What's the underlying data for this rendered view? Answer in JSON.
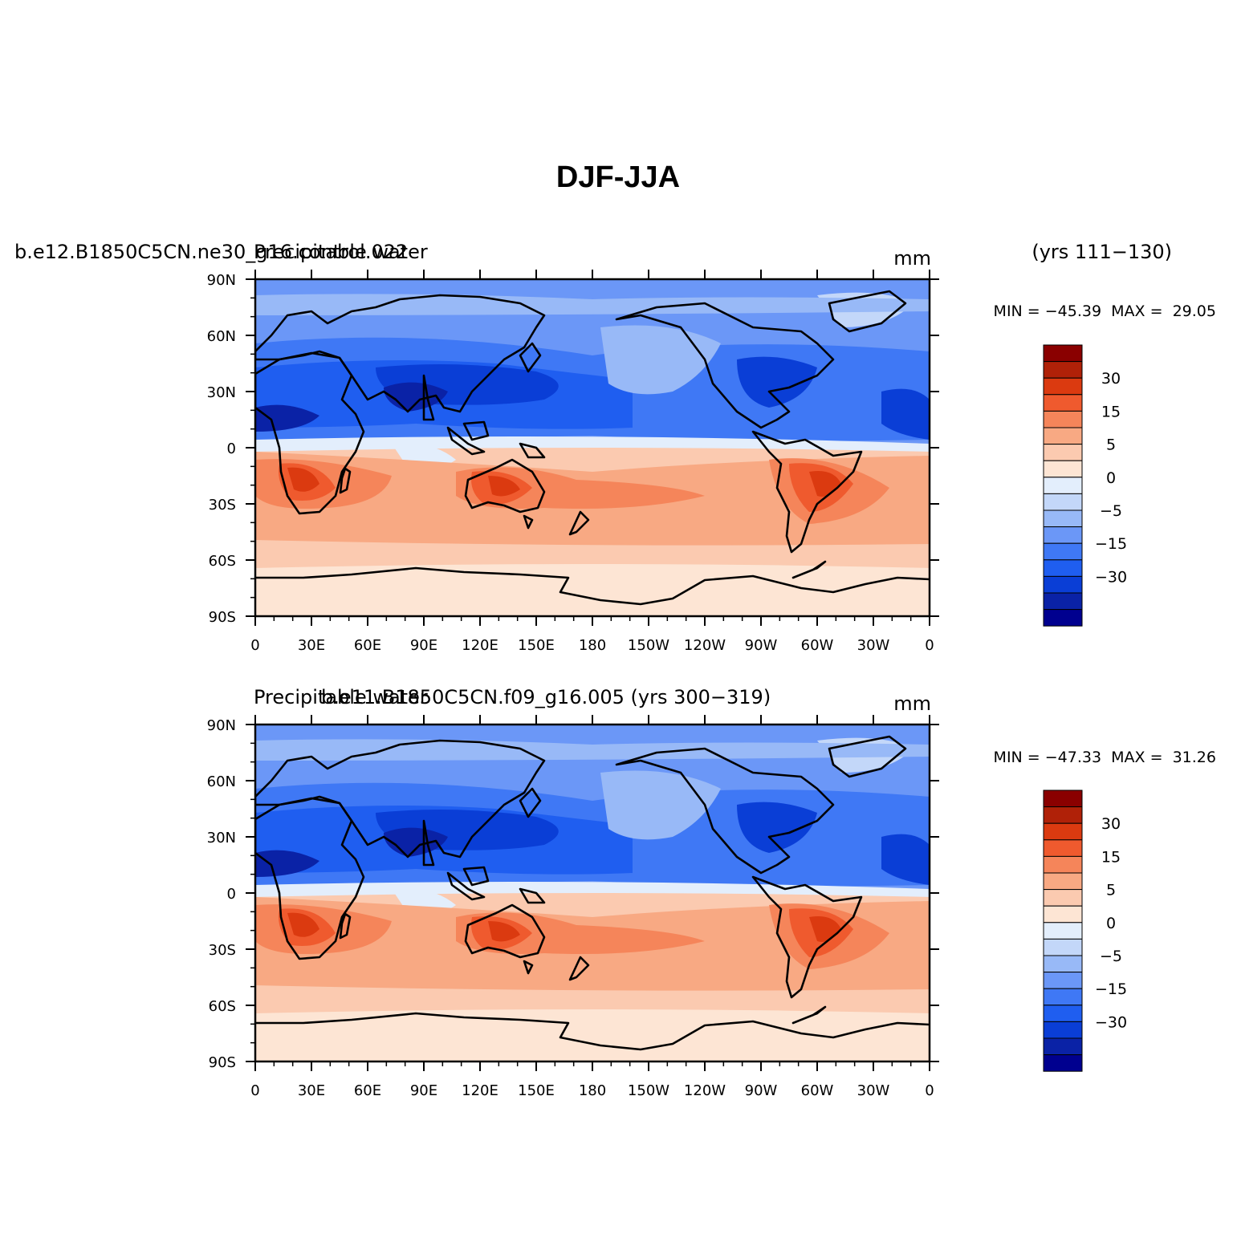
{
  "title": "DJF-JJA",
  "palette": [
    "#00008f",
    "#0a22a6",
    "#0a3ed6",
    "#1f5ef0",
    "#3f78f5",
    "#6b97f7",
    "#98b9f7",
    "#c3d7f9",
    "#e3eefc",
    "#fde5d4",
    "#fbcab0",
    "#f8a983",
    "#f5855a",
    "#ef5a2e",
    "#db3a10",
    "#b02108",
    "#8a0000"
  ],
  "colorbar_labels": [
    "30",
    "15",
    "5",
    "0",
    "−5",
    "−15",
    "−30"
  ],
  "x_tick_labels": [
    "0",
    "30E",
    "60E",
    "90E",
    "120E",
    "150E",
    "180",
    "150W",
    "120W",
    "90W",
    "60W",
    "30W",
    "0"
  ],
  "y_tick_labels": [
    "90N",
    "60N",
    "30N",
    "0",
    "30S",
    "60S",
    "90S"
  ],
  "panels": [
    {
      "left_title": "b.e12.B1850C5CN.ne30_g16.control.022",
      "overlap_title": "Precipitable water",
      "right_title": "(yrs 111−130)",
      "units": "mm",
      "min_max": "MIN = −45.39  MAX =  29.05",
      "min": -45.39,
      "max": 29.05
    },
    {
      "left_title": "Precipitable water",
      "overlap_title": "b.e11.B1850C5CN.f09_g16.005 (yrs 300−319)",
      "right_title": "",
      "units": "mm",
      "min_max": "MIN = −47.33  MAX =  31.26",
      "min": -47.33,
      "max": 31.26
    }
  ]
}
